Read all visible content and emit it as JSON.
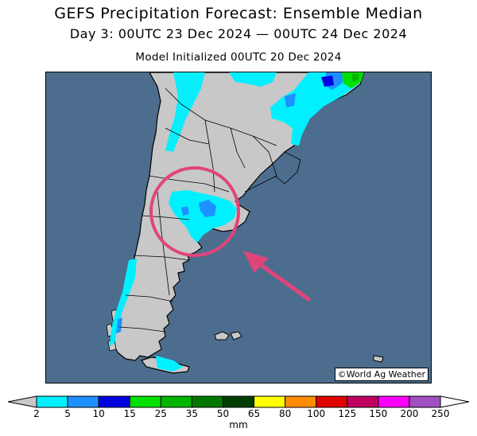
{
  "header": {
    "title": "GEFS Precipitation Forecast: Ensemble Median",
    "period": "Day 3: 00UTC 23 Dec 2024 — 00UTC 24 Dec 2024",
    "init": "Model Initialized 00UTC 20 Dec 2024"
  },
  "map": {
    "credit": "©World Ag Weather",
    "colors": {
      "ocean": "#4d6d8f",
      "land": "#c8c8c8",
      "highlight_circle": "#e0457a",
      "arrow": "#e0457a"
    },
    "highlight": {
      "description": "circle and arrow"
    }
  },
  "legend": {
    "unit": "mm",
    "ticks": [
      "2",
      "5",
      "10",
      "15",
      "25",
      "35",
      "50",
      "65",
      "80",
      "100",
      "125",
      "150",
      "200",
      "250"
    ],
    "colors": [
      "#00f0ff",
      "#1e90ff",
      "#0000e0",
      "#00e000",
      "#00b400",
      "#007800",
      "#003c00",
      "#ffff00",
      "#ff8c00",
      "#e00000",
      "#c00060",
      "#ff00ff",
      "#a050c0"
    ]
  }
}
